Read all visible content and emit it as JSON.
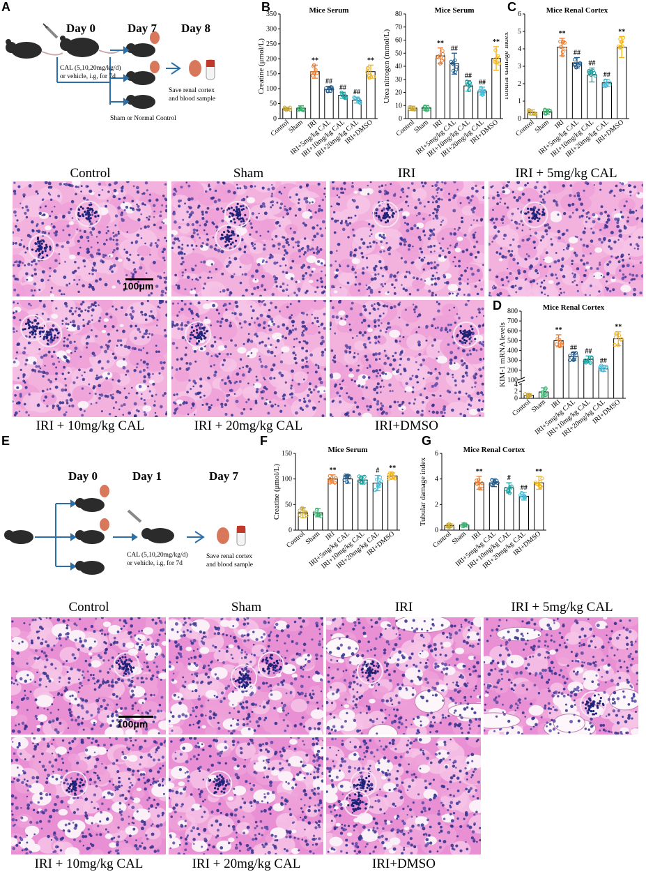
{
  "panels": {
    "A": "A",
    "B": "B",
    "C": "C",
    "D": "D",
    "E": "E",
    "F": "F",
    "G": "G"
  },
  "schemeA": {
    "day0": "Day 0",
    "day7": "Day 7",
    "day8": "Day 8",
    "treat1": "CAL (5,10,20mg/kg/d)",
    "treat2": "or vehicle, i.g, for 7d",
    "sham": "Sham or Normal Control",
    "save1": "Save renal cortex",
    "save2": "and blood sample"
  },
  "schemeE": {
    "day0": "Day 0",
    "day1": "Day 1",
    "day7": "Day 7",
    "treat1": "CAL (5,10,20mg/kg/d)",
    "treat2": "or vehicle, i.g, for 7d",
    "save1": "Save renal cortex",
    "save2": "and blood sample"
  },
  "histology_top": {
    "labels": [
      "Control",
      "Sham",
      "IRI",
      "IRI + 5mg/kg CAL",
      "IRI + 10mg/kg CAL",
      "IRI + 20mg/kg CAL",
      "IRI+DMSO"
    ],
    "scale_bar": "100μm"
  },
  "histology_bottom": {
    "labels": [
      "Control",
      "Sham",
      "IRI",
      "IRI + 5mg/kg CAL",
      "IRI + 10mg/kg CAL",
      "IRI + 20mg/kg CAL",
      "IRI+DMSO"
    ],
    "scale_bar": "100μm"
  },
  "colors": {
    "control": "#c8a838",
    "sham": "#3cb371",
    "iri": "#f07a2a",
    "cal5": "#1f5a8c",
    "cal10": "#19a0a0",
    "cal20": "#40bcd8",
    "dmso": "#f2b318",
    "he_pink": "#f0a8d8",
    "he_nuclei": "#2a2a8a"
  },
  "chart_data": [
    {
      "id": "B1",
      "type": "bar",
      "title": "Mice Serum",
      "ylabel": "Creatine (μmol/L)",
      "categories": [
        "Control",
        "Sham",
        "IRI",
        "IRI+5mg/kg CAL",
        "IRI+10mg/kg CAL",
        "IRI+20mg/kg CAL",
        "IRI+DMSO"
      ],
      "values": [
        33,
        35,
        157,
        98,
        78,
        62,
        157
      ],
      "errors": [
        5,
        8,
        22,
        10,
        10,
        10,
        22
      ],
      "yticks": [
        0,
        50,
        100,
        150,
        200,
        250,
        300,
        350
      ],
      "ylim": [
        0,
        350
      ],
      "annotations": [
        "",
        "",
        "**",
        "##",
        "##",
        "##",
        "**"
      ]
    },
    {
      "id": "B2",
      "type": "bar",
      "title": "Mice Serum",
      "ylabel": "Urea nitrogen (mmol/L)",
      "categories": [
        "Control",
        "Sham",
        "IRI",
        "IRI+5mg/kg CAL",
        "IRI+10mg/kg CAL",
        "IRI+20mg/kg CAL",
        "IRI+DMSO"
      ],
      "values": [
        8,
        8,
        48,
        42,
        25,
        21,
        46
      ],
      "errors": [
        1.5,
        2,
        6,
        8,
        4,
        3,
        9
      ],
      "yticks": [
        0,
        10,
        20,
        30,
        40,
        50,
        60,
        70,
        80
      ],
      "ylim": [
        0,
        80
      ],
      "annotations": [
        "",
        "",
        "**",
        "##",
        "##",
        "##",
        "**"
      ]
    },
    {
      "id": "C",
      "type": "bar",
      "title": "Mice Renal Cortex",
      "ylabel": "Tubular damage index",
      "categories": [
        "Control",
        "Sham",
        "IRI",
        "IRI+5mg/kg CAL",
        "IRI+10mg/kg CAL",
        "IRI+20mg/kg CAL",
        "IRI+DMSO"
      ],
      "values": [
        0.35,
        0.4,
        4.1,
        3.2,
        2.5,
        2.05,
        4.1
      ],
      "errors": [
        0.15,
        0.15,
        0.5,
        0.3,
        0.4,
        0.2,
        0.6
      ],
      "yticks": [
        0,
        1,
        2,
        3,
        4,
        5,
        6
      ],
      "ylim": [
        0,
        6
      ],
      "annotations": [
        "",
        "",
        "**",
        "##",
        "##",
        "##",
        "**"
      ]
    },
    {
      "id": "D",
      "type": "bar",
      "title": "Mice Renal Cortex",
      "ylabel": "KIM-1 mRNA levels",
      "categories": [
        "Control",
        "Sham",
        "IRI",
        "IRI+5mg/kg CAL",
        "IRI+10mg/kg CAL",
        "IRI+20mg/kg CAL",
        "IRI+DMSO"
      ],
      "values": [
        0.9,
        1.8,
        500,
        340,
        310,
        220,
        520
      ],
      "errors": [
        0.4,
        1.2,
        60,
        40,
        35,
        30,
        70
      ],
      "yticks_low": [
        0,
        2,
        4
      ],
      "yticks_high": [
        100,
        200,
        300,
        400,
        500,
        600,
        700,
        800
      ],
      "ylim": [
        0,
        800
      ],
      "axis_break": [
        4,
        100
      ],
      "annotations": [
        "",
        "",
        "**",
        "##",
        "##",
        "##",
        "**"
      ]
    },
    {
      "id": "F",
      "type": "bar",
      "title": "Mice Serum",
      "ylabel": "Creatine (μmol/L)",
      "categories": [
        "Control",
        "Sham",
        "IRI",
        "IRI+5mg/kg CAL",
        "IRI+10mg/kg CAL",
        "IRI+20mg/kg CAL",
        "IRI+DMSO"
      ],
      "values": [
        34,
        34,
        100,
        100,
        98,
        92,
        106
      ],
      "errors": [
        10,
        8,
        8,
        8,
        8,
        15,
        6
      ],
      "yticks": [
        0,
        50,
        100,
        150
      ],
      "ylim": [
        0,
        150
      ],
      "annotations": [
        "",
        "",
        "**",
        "",
        "",
        "#",
        "**"
      ]
    },
    {
      "id": "G",
      "type": "bar",
      "title": "Mice Renal Cortex",
      "ylabel": "Tubular damage index",
      "categories": [
        "Control",
        "Sham",
        "IRI",
        "IRI+5mg/kg CAL",
        "IRI+10mg/kg CAL",
        "IRI+20mg/kg CAL",
        "IRI+DMSO"
      ],
      "values": [
        0.35,
        0.4,
        3.7,
        3.7,
        3.3,
        2.65,
        3.7
      ],
      "errors": [
        0.15,
        0.15,
        0.5,
        0.3,
        0.4,
        0.3,
        0.5
      ],
      "yticks": [
        0,
        2,
        4,
        6
      ],
      "ylim": [
        0,
        6
      ],
      "annotations": [
        "",
        "",
        "**",
        "",
        "#",
        "##",
        "**"
      ]
    }
  ]
}
